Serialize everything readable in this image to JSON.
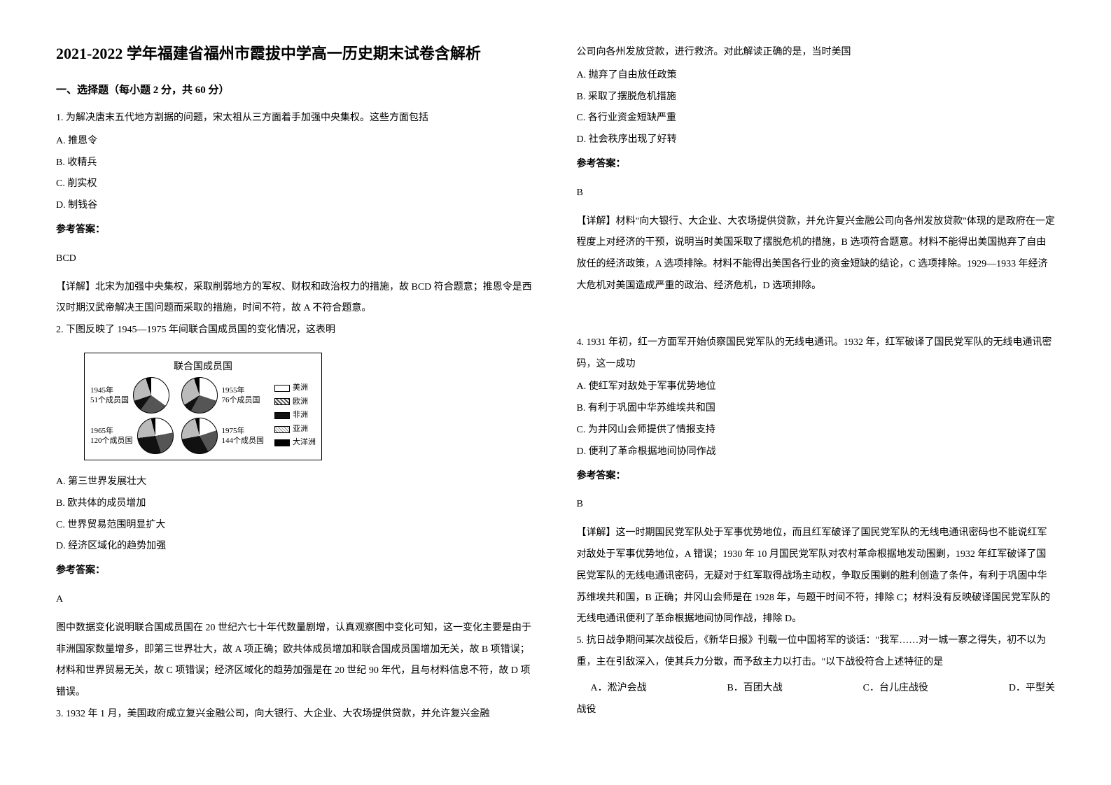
{
  "title": "2021-2022 学年福建省福州市霞拔中学高一历史期末试卷含解析",
  "section_header": "一、选择题（每小题 2 分，共 60 分）",
  "q1": {
    "stem": "1. 为解决唐末五代地方割据的问题，宋太祖从三方面着手加强中央集权。这些方面包括",
    "optA": "A. 推恩令",
    "optB": "B. 收精兵",
    "optC": "C. 削实权",
    "optD": "D. 制钱谷",
    "answer_label": "参考答案：",
    "answer": "BCD",
    "explanation": "【详解】北宋为加强中央集权，采取削弱地方的军权、财权和政治权力的措施，故 BCD 符合题意；推恩令是西汉时期汉武帝解决王国问题而采取的措施，时间不符，故 A 不符合题意。"
  },
  "q2": {
    "stem": "2. 下图反映了 1945—1975 年间联合国成员国的变化情况，这表明",
    "chart": {
      "title": "联合国成员国",
      "pies": [
        {
          "year": "1945年",
          "members": "51个成员国",
          "slices": [
            {
              "c": "#ffffff",
              "p": 35
            },
            {
              "c": "#555555",
              "p": 25
            },
            {
              "c": "#111111",
              "p": 10
            },
            {
              "c": "#bbbbbb",
              "p": 25
            },
            {
              "c": "#000000",
              "p": 5
            }
          ]
        },
        {
          "year": "1955年",
          "members": "76个成员国",
          "slices": [
            {
              "c": "#ffffff",
              "p": 30
            },
            {
              "c": "#555555",
              "p": 28
            },
            {
              "c": "#111111",
              "p": 8
            },
            {
              "c": "#bbbbbb",
              "p": 29
            },
            {
              "c": "#000000",
              "p": 5
            }
          ]
        },
        {
          "year": "1965年",
          "members": "120个成员国",
          "slices": [
            {
              "c": "#ffffff",
              "p": 22
            },
            {
              "c": "#555555",
              "p": 23
            },
            {
              "c": "#111111",
              "p": 28
            },
            {
              "c": "#bbbbbb",
              "p": 23
            },
            {
              "c": "#000000",
              "p": 4
            }
          ]
        },
        {
          "year": "1975年",
          "members": "144个成员国",
          "slices": [
            {
              "c": "#ffffff",
              "p": 20
            },
            {
              "c": "#555555",
              "p": 22
            },
            {
              "c": "#111111",
              "p": 30
            },
            {
              "c": "#bbbbbb",
              "p": 24
            },
            {
              "c": "#000000",
              "p": 4
            }
          ]
        }
      ],
      "legend": [
        {
          "label": "美洲",
          "color": "#ffffff"
        },
        {
          "label": "欧洲",
          "color": "#555555",
          "pattern": "diag"
        },
        {
          "label": "非洲",
          "color": "#111111"
        },
        {
          "label": "亚洲",
          "color": "#bbbbbb",
          "pattern": "cross"
        },
        {
          "label": "大洋洲",
          "color": "#000000"
        }
      ]
    },
    "optA": "A. 第三世界发展壮大",
    "optB": "B. 欧共体的成员增加",
    "optC": "C. 世界贸易范围明显扩大",
    "optD": "D. 经济区域化的趋势加强",
    "answer_label": "参考答案：",
    "answer": "A",
    "explanation": "图中数据变化说明联合国成员国在 20 世纪六七十年代数量剧增，认真观察图中变化可知，这一变化主要是由于非洲国家数量增多，即第三世界壮大，故 A 项正确；欧共体成员增加和联合国成员国增加无关，故 B 项错误；材料和世界贸易无关，故 C 项错误；经济区域化的趋势加强是在 20 世纪 90 年代，且与材料信息不符，故 D 项错误。"
  },
  "q3": {
    "stem_p1": "3. 1932 年 1 月，美国政府成立复兴金融公司，向大银行、大企业、大农场提供贷款，并允许复兴金融",
    "stem_p2": "公司向各州发放贷款，进行救济。对此解读正确的是，当时美国",
    "optA": "A. 抛弃了自由放任政策",
    "optB": "B. 采取了摆脱危机措施",
    "optC": "C. 各行业资金短缺严重",
    "optD": "D. 社会秩序出现了好转",
    "answer_label": "参考答案：",
    "answer": "B",
    "explanation": "【详解】材料\"向大银行、大企业、大农场提供贷款，并允许复兴金融公司向各州发放贷款\"体现的是政府在一定程度上对经济的干预，说明当时美国采取了摆脱危机的措施，B 选项符合题意。材料不能得出美国抛弃了自由放任的经济政策，A 选项排除。材料不能得出美国各行业的资金短缺的结论，C 选项排除。1929—1933 年经济大危机对美国造成严重的政治、经济危机，D 选项排除。"
  },
  "q4": {
    "stem": "4. 1931 年初，红一方面军开始侦察国民党军队的无线电通讯。1932 年，红军破译了国民党军队的无线电通讯密码，这一成功",
    "optA": "A. 使红军对敌处于军事优势地位",
    "optB": "B. 有利于巩固中华苏维埃共和国",
    "optC": "C. 为井冈山会师提供了情报支持",
    "optD": "D. 便利了革命根据地间协同作战",
    "answer_label": "参考答案：",
    "answer": "B",
    "explanation": "【详解】这一时期国民党军队处于军事优势地位，而且红军破译了国民党军队的无线电通讯密码也不能说红军对敌处于军事优势地位，A 错误；1930 年 10 月国民党军队对农村革命根据地发动围剿，1932 年红军破译了国民党军队的无线电通讯密码，无疑对于红军取得战场主动权，争取反围剿的胜利创造了条件，有利于巩固中华苏维埃共和国，B 正确；井冈山会师是在 1928 年，与题干时间不符，排除 C；材料没有反映破译国民党军队的无线电通讯便利了革命根据地间协同作战，排除 D。"
  },
  "q5": {
    "stem": "5. 抗日战争期间某次战役后，《新华日报》刊载一位中国将军的谈话：\"我军……对一城一寨之得失，初不以为重，主在引敌深入，使其兵力分散，而予敌主力以打击。\"以下战役符合上述特征的是",
    "optA": "A．淞沪会战",
    "optB": "B．百团大战",
    "optC": "C．台儿庄战役",
    "optD": "D．平型关",
    "trailing": "战役"
  },
  "colors": {
    "text": "#000000",
    "background": "#ffffff",
    "border": "#000000"
  }
}
